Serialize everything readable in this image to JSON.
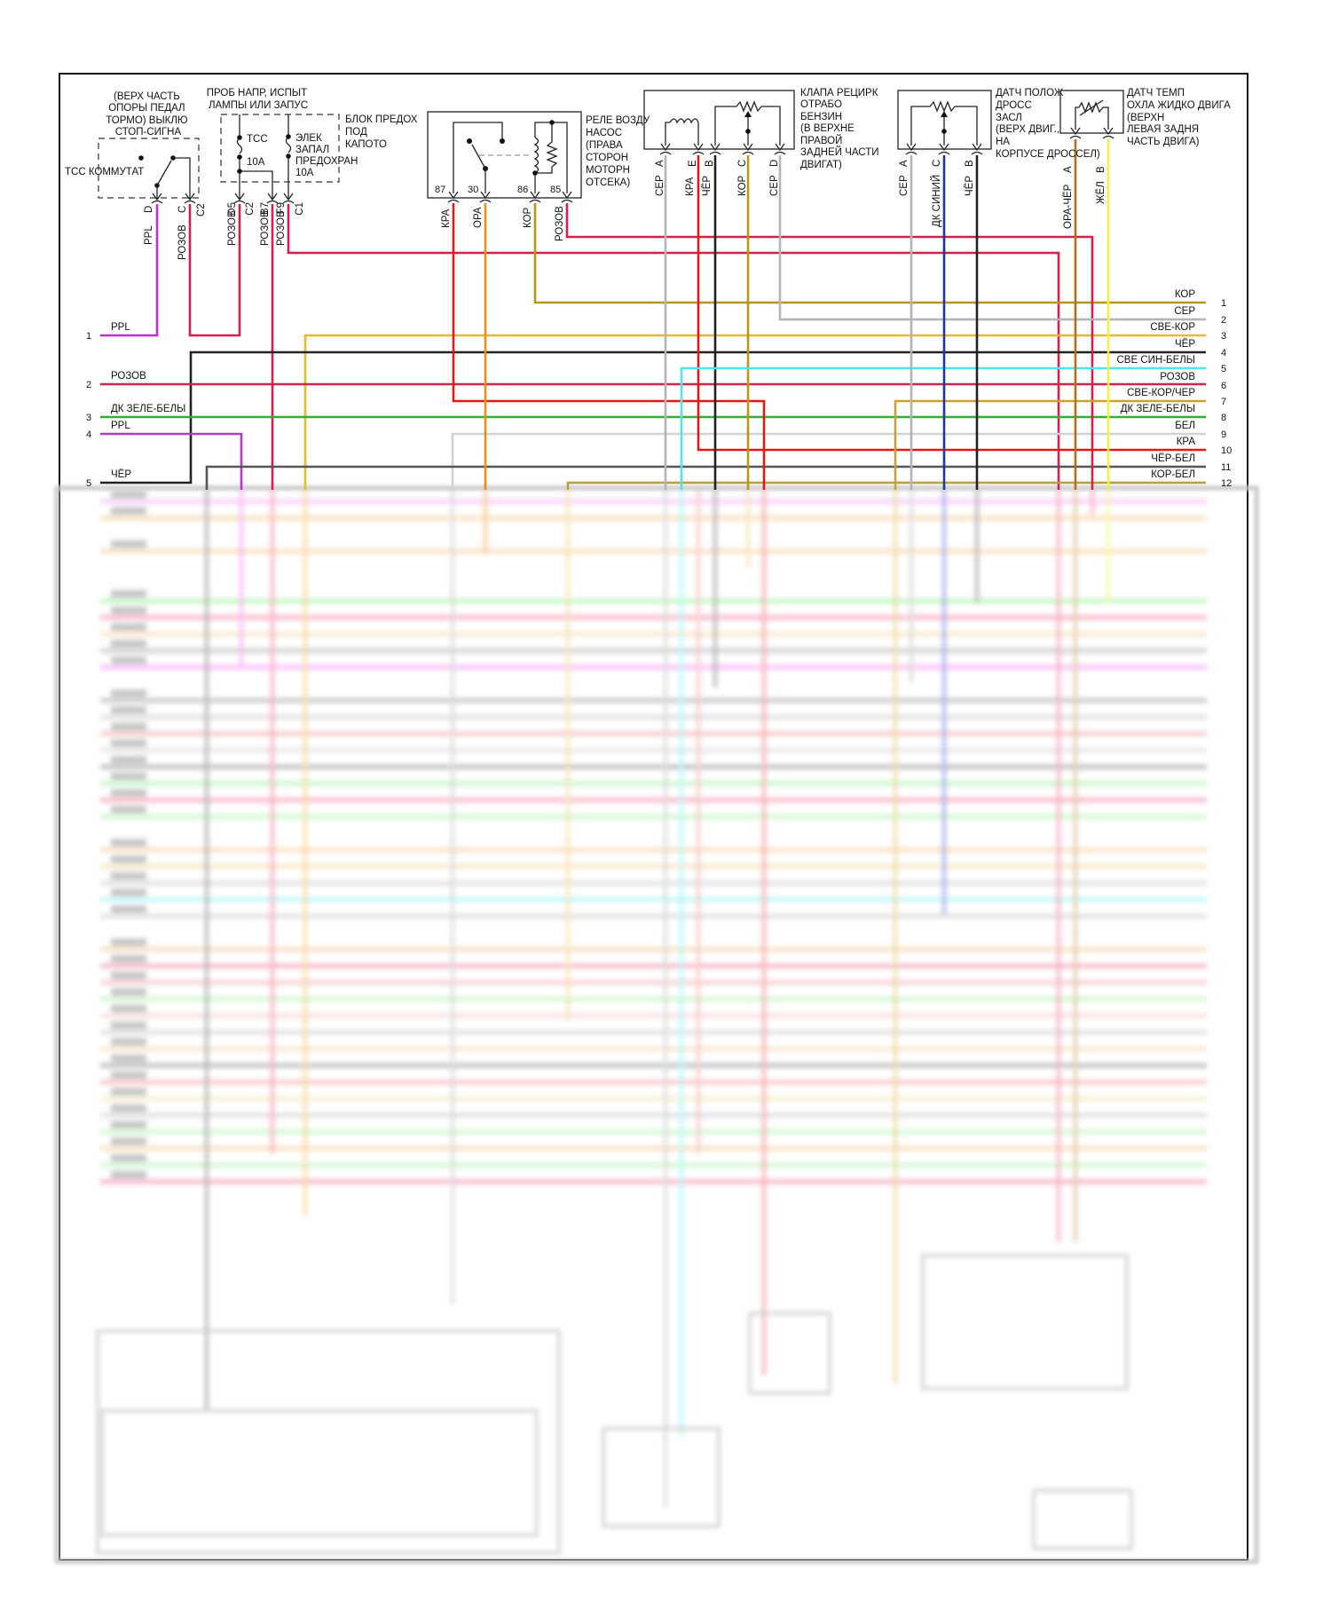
{
  "wire_colors": {
    "КОР": "#b8961e",
    "СЕР": "#b4b4b4",
    "СВЕ-КОР": "#e8b830",
    "ЧЁР": "#222222",
    "СВЕ СИН-БЕЛЫ": "#55e2ea",
    "РОЗОВ": "#d81f4c",
    "СВЕ-КОР/ЧЕР": "#c9a232",
    "ДК ЗЕЛЕ-БЕЛЫ": "#3aa83a",
    "БЕЛ": "#d2d2d2",
    "КРА": "#e01818",
    "ЧЁР-БЕЛ": "#555555",
    "КОР-БЕЛ": "#b8a040",
    "PPL": "#c22fd2",
    "ОРА": "#e8901a",
    "ДК СИНИЙ": "#1a3aa0",
    "ОРА-ЧЁР": "#b07020",
    "ЖЁЛ": "#f2f040"
  },
  "components": {
    "tcc_switch": {
      "title": [
        "(ВЕРХ ЧАСТЬ",
        "ОПОРЫ ПЕДАЛ",
        "ТОРМО) ВЫКЛЮ",
        "СТОП-СИГНА"
      ],
      "name": "ТСС КОММУТАТ",
      "pins": [
        "D",
        "C",
        "C2"
      ],
      "wires": [
        "PPL",
        "РОЗОВ"
      ]
    },
    "fuse_block": {
      "title": [
        "ПРОБ НАПР, ИСПЫТ",
        "ЛАМПЫ ИЛИ ЗАПУС"
      ],
      "name": [
        "БЛОК ПРЕДОХ",
        "ПОД",
        "КАПОТО"
      ],
      "fuse1": [
        "ТСС",
        "10А"
      ],
      "fuse2": [
        "ЭЛЕК",
        "ЗАПАЛ",
        "ПРЕДОХРАН",
        "10А"
      ],
      "pins": [
        "D5",
        "C2",
        "B7",
        "F9",
        "C1"
      ],
      "wires": [
        "РОЗОВ",
        "РОЗОВ",
        "РОЗОВ"
      ]
    },
    "air_pump_relay": {
      "name": [
        "РЕЛЕ ВОЗДУ",
        "НАСОС",
        "(ПРАВА",
        "СТОРОН",
        "МОТОРН",
        "ОТСЕКА)"
      ],
      "pins": [
        "87",
        "30",
        "86",
        "85"
      ],
      "wires": [
        "КРА",
        "ОРА",
        "КОР",
        "РОЗОВ"
      ]
    },
    "egr_valve": {
      "name": [
        "КЛАПА РЕЦИРК",
        "ОТРАБО",
        "БЕНЗИН",
        "(В ВЕРХНЕ",
        "ПРАВОЙ",
        "ЗАДНЕЙ ЧАСТИ",
        "ДВИГАТ)"
      ],
      "pins": [
        "A",
        "E",
        "B",
        "C",
        "D"
      ],
      "wires": [
        "СЕР",
        "КРА",
        "ЧЁР",
        "КОР",
        "СЕР"
      ]
    },
    "tps": {
      "name": [
        "ДАТЧ ПОЛОЖ",
        "ДРОСС",
        "ЗАСЛ",
        "(ВЕРХ ДВИГ.,",
        "НА",
        "КОРПУСЕ ДРОССЕЛ)"
      ],
      "pins": [
        "A",
        "C",
        "B"
      ],
      "wires": [
        "СЕР",
        "ДК СИНИЙ",
        "ЧЁР"
      ]
    },
    "ect_sensor": {
      "name": [
        "ДАТЧ ТЕМП",
        "ОХЛА ЖИДКО ДВИГА",
        "(ВЕРХН",
        "ЛЕВАЯ ЗАДНЯ",
        "ЧАСТЬ ДВИГА)"
      ],
      "pins": [
        "A",
        "B"
      ],
      "wires": [
        "ОРА-ЧЁР",
        "ЖЁЛ"
      ]
    }
  },
  "left_connector": [
    {
      "num": "1",
      "label": "PPL"
    },
    {
      "num": "2",
      "label": "РОЗОВ"
    },
    {
      "num": "3",
      "label": "ДК ЗЕЛЕ-БЕЛЫ"
    },
    {
      "num": "4",
      "label": "PPL"
    },
    {
      "num": "5",
      "label": "ЧЁР"
    }
  ],
  "right_connector": [
    {
      "num": "1",
      "label": "КОР"
    },
    {
      "num": "2",
      "label": "СЕР"
    },
    {
      "num": "3",
      "label": "СВЕ-КОР"
    },
    {
      "num": "4",
      "label": "ЧЁР"
    },
    {
      "num": "5",
      "label": "СВЕ СИН-БЕЛЫ"
    },
    {
      "num": "6",
      "label": "РОЗОВ"
    },
    {
      "num": "7",
      "label": "СВЕ-КОР/ЧЕР"
    },
    {
      "num": "8",
      "label": "ДК ЗЕЛЕ-БЕЛЫ"
    },
    {
      "num": "9",
      "label": "БЕЛ"
    },
    {
      "num": "10",
      "label": "КРА"
    },
    {
      "num": "11",
      "label": "ЧЁР-БЕЛ"
    },
    {
      "num": "12",
      "label": "КОР-БЕЛ"
    }
  ]
}
